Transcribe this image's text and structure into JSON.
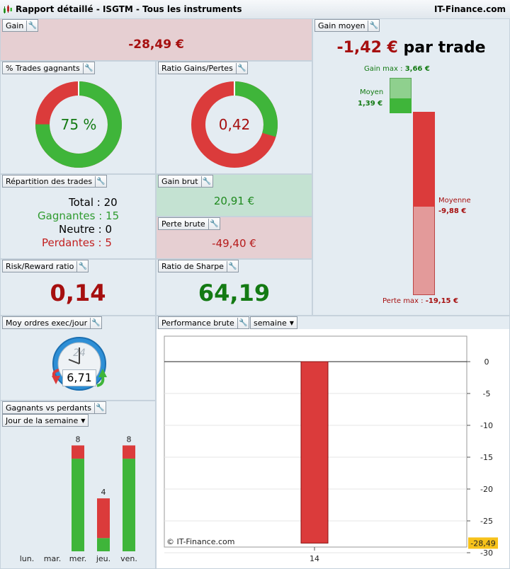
{
  "header": {
    "title": "Rapport détaillé - ISGTM - Tous les instruments",
    "brand": "IT-Finance.com"
  },
  "gain": {
    "label": "Gain",
    "value": "-28,49 €"
  },
  "gain_moyen": {
    "label": "Gain moyen",
    "value": "-1,42 €",
    "suffix": "par trade",
    "gain_max_label": "Gain max :",
    "gain_max_value": "3,66 €",
    "moyen_label": "Moyen",
    "moyen_value": "1,39 €",
    "moyenne_label": "Moyenne",
    "moyenne_value": "-9,88 €",
    "perte_max_label": "Perte max :",
    "perte_max_value": "-19,15 €",
    "gain_max": 3.66,
    "gain_moyen": 1.39,
    "perte_moyenne": -9.88,
    "perte_max": -19.15
  },
  "trades_gagnants": {
    "label": "% Trades gagnants",
    "value": "75 %",
    "fraction": 0.75
  },
  "ratio_gains_pertes": {
    "label": "Ratio Gains/Pertes",
    "value": "0,42",
    "fraction": 0.2958
  },
  "repartition": {
    "label": "Répartition des trades",
    "total": "Total : 20",
    "gagnantes": "Gagnantes : 15",
    "neutre": "Neutre : 0",
    "perdantes": "Perdantes : 5"
  },
  "gain_brut": {
    "label": "Gain brut",
    "value": "20,91 €"
  },
  "perte_brute": {
    "label": "Perte brute",
    "value": "-49,40 €"
  },
  "risk_reward": {
    "label": "Risk/Reward ratio",
    "value": "0,14"
  },
  "sharpe": {
    "label": "Ratio de Sharpe",
    "value": "64,19"
  },
  "moy_ordres": {
    "label": "Moy ordres exec/jour",
    "value": "6,71",
    "clock_number": "24"
  },
  "performance": {
    "label": "Performance brute",
    "period": "semaine",
    "watermark": "© IT-Finance.com",
    "current_value_badge": "-28,49"
  },
  "gagnants_perdants": {
    "label": "Gagnants vs perdants",
    "period": "Jour de la semaine"
  },
  "colors": {
    "green": "#3fb53a",
    "red": "#db3b3b",
    "dark_red": "#a60f0f",
    "dark_green": "#137a13",
    "badge": "#f7c21b"
  },
  "chart_data": [
    {
      "type": "bar",
      "title": "Performance brute",
      "categories": [
        "14"
      ],
      "values": [
        -28.49
      ],
      "ylim": [
        -30,
        0
      ],
      "yticks": [
        0,
        -5,
        -10,
        -15,
        -20,
        -25,
        -30
      ],
      "ytick_labels": [
        "0",
        "-5",
        "-10",
        "-15",
        "-20",
        "-25",
        "-30"
      ],
      "grid": true
    },
    {
      "type": "bar",
      "title": "Gagnants vs perdants",
      "categories": [
        "lun.",
        "mar.",
        "mer.",
        "jeu.",
        "ven."
      ],
      "series": [
        {
          "values": [
            0,
            0,
            7,
            1,
            7
          ]
        },
        {
          "values": [
            0,
            0,
            1,
            3,
            1
          ]
        }
      ],
      "totals": [
        0,
        0,
        8,
        4,
        8
      ],
      "total_labels": [
        "",
        "",
        "8",
        "4",
        "8"
      ]
    }
  ]
}
